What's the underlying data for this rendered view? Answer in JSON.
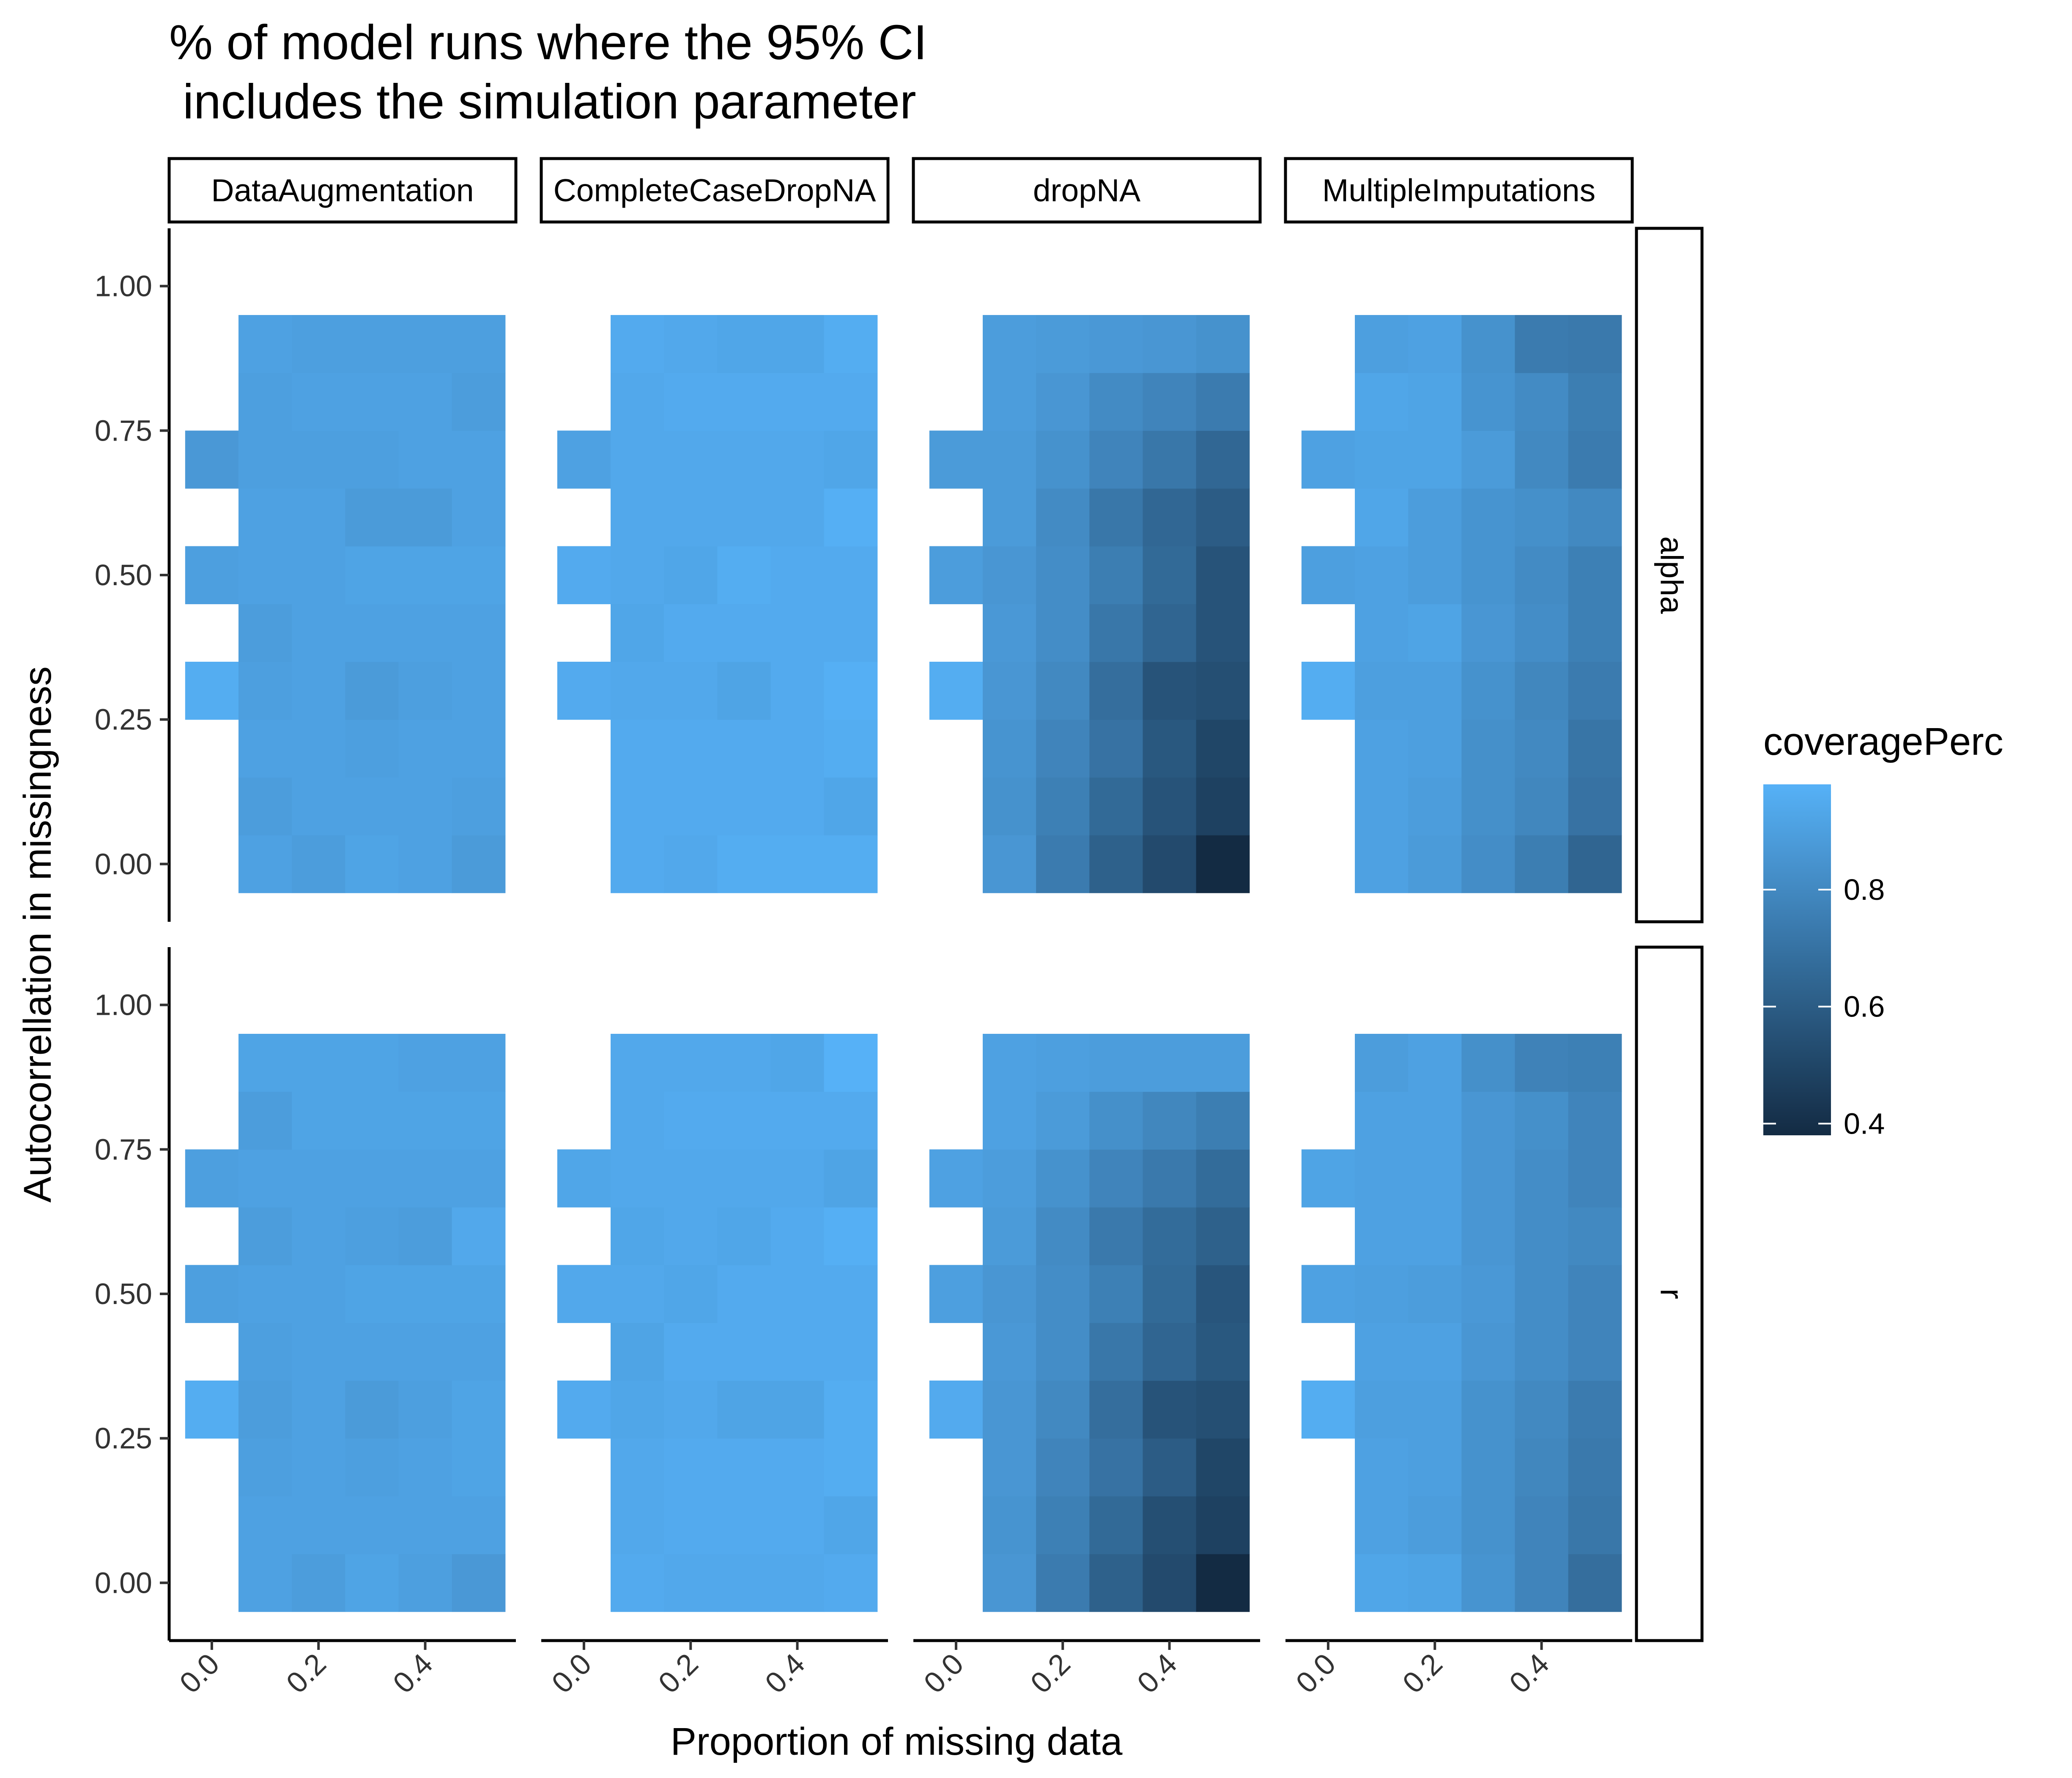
{
  "chart_data": {
    "type": "heatmap",
    "title": "% of model runs where the 95% CI\n includes the simulation parameter",
    "xlabel": "Proportion of missing data",
    "ylabel": "Autocorrellation in missingness",
    "x_tick_labels": [
      "0.0",
      "0.2",
      "0.4"
    ],
    "y_tick_labels": [
      "0.00",
      "0.25",
      "0.50",
      "0.75",
      "1.00"
    ],
    "xlim": [
      -0.08,
      0.57
    ],
    "ylim": [
      -0.1,
      1.1
    ],
    "column_facets": [
      "DataAugmentation",
      "CompleteCaseDropNA",
      "dropNA",
      "MultipleImputations"
    ],
    "row_facets": [
      "alpha",
      "r"
    ],
    "x": [
      0.0,
      0.1,
      0.2,
      0.3,
      0.4,
      0.5
    ],
    "y": [
      0.0,
      0.1,
      0.2,
      0.3,
      0.4,
      0.5,
      0.6,
      0.7,
      0.8,
      0.9
    ],
    "cell_width": 0.1,
    "cell_height": 0.1,
    "missing_note": "Cells at x = 0.0 exist only for y = 0.3, 0.5, 0.7",
    "legend": {
      "title": "coveragePerc",
      "ticks": [
        0.4,
        0.6,
        0.8
      ],
      "min": 0.38,
      "max": 0.98,
      "color_low": "#132B43",
      "color_high": "#56B1F7",
      "placement": "right"
    },
    "cells": {
      "DataAugmentation": {
        "alpha": [
          [
            0.0,
            0.91,
            0.89,
            0.92,
            0.91,
            0.88
          ],
          [
            0.0,
            0.89,
            0.91,
            0.91,
            0.91,
            0.9
          ],
          [
            0.0,
            0.91,
            0.91,
            0.9,
            0.91,
            0.91
          ],
          [
            0.96,
            0.9,
            0.91,
            0.88,
            0.9,
            0.91
          ],
          [
            0.0,
            0.89,
            0.91,
            0.91,
            0.91,
            0.91
          ],
          [
            0.9,
            0.91,
            0.91,
            0.92,
            0.92,
            0.92
          ],
          [
            0.0,
            0.91,
            0.91,
            0.88,
            0.88,
            0.91
          ],
          [
            0.87,
            0.9,
            0.9,
            0.9,
            0.91,
            0.91
          ],
          [
            0.0,
            0.9,
            0.91,
            0.91,
            0.91,
            0.89
          ],
          [
            0.0,
            0.91,
            0.9,
            0.9,
            0.9,
            0.9
          ]
        ],
        "r": [
          [
            0.0,
            0.91,
            0.89,
            0.92,
            0.9,
            0.87
          ],
          [
            0.0,
            0.91,
            0.91,
            0.91,
            0.91,
            0.91
          ],
          [
            0.0,
            0.9,
            0.91,
            0.9,
            0.91,
            0.92
          ],
          [
            0.96,
            0.89,
            0.91,
            0.88,
            0.9,
            0.92
          ],
          [
            0.0,
            0.9,
            0.91,
            0.91,
            0.91,
            0.91
          ],
          [
            0.9,
            0.91,
            0.91,
            0.92,
            0.92,
            0.92
          ],
          [
            0.0,
            0.89,
            0.91,
            0.9,
            0.89,
            0.94
          ],
          [
            0.9,
            0.91,
            0.91,
            0.91,
            0.91,
            0.91
          ],
          [
            0.0,
            0.89,
            0.92,
            0.92,
            0.92,
            0.92
          ],
          [
            0.0,
            0.92,
            0.92,
            0.92,
            0.91,
            0.91
          ]
        ]
      },
      "CompleteCaseDropNA": {
        "alpha": [
          [
            0.0,
            0.95,
            0.94,
            0.96,
            0.96,
            0.96
          ],
          [
            0.0,
            0.95,
            0.95,
            0.95,
            0.95,
            0.93
          ],
          [
            0.0,
            0.95,
            0.95,
            0.95,
            0.95,
            0.96
          ],
          [
            0.95,
            0.94,
            0.94,
            0.92,
            0.95,
            0.97
          ],
          [
            0.0,
            0.93,
            0.95,
            0.95,
            0.95,
            0.95
          ],
          [
            0.95,
            0.94,
            0.93,
            0.96,
            0.95,
            0.95
          ],
          [
            0.0,
            0.94,
            0.94,
            0.94,
            0.94,
            0.97
          ],
          [
            0.91,
            0.94,
            0.94,
            0.94,
            0.94,
            0.93
          ],
          [
            0.0,
            0.94,
            0.95,
            0.95,
            0.95,
            0.95
          ],
          [
            0.0,
            0.95,
            0.94,
            0.93,
            0.93,
            0.96
          ]
        ],
        "r": [
          [
            0.0,
            0.95,
            0.94,
            0.94,
            0.94,
            0.95
          ],
          [
            0.0,
            0.94,
            0.95,
            0.95,
            0.95,
            0.93
          ],
          [
            0.0,
            0.94,
            0.95,
            0.95,
            0.95,
            0.96
          ],
          [
            0.95,
            0.93,
            0.94,
            0.92,
            0.92,
            0.96
          ],
          [
            0.0,
            0.92,
            0.95,
            0.95,
            0.95,
            0.95
          ],
          [
            0.94,
            0.94,
            0.93,
            0.95,
            0.95,
            0.95
          ],
          [
            0.0,
            0.93,
            0.94,
            0.93,
            0.95,
            0.97
          ],
          [
            0.93,
            0.94,
            0.94,
            0.94,
            0.94,
            0.92
          ],
          [
            0.0,
            0.94,
            0.95,
            0.95,
            0.95,
            0.95
          ],
          [
            0.0,
            0.94,
            0.94,
            0.94,
            0.93,
            0.98
          ]
        ]
      },
      "dropNA": {
        "alpha": [
          [
            0.0,
            0.86,
            0.74,
            0.62,
            0.52,
            0.38
          ],
          [
            0.0,
            0.84,
            0.76,
            0.66,
            0.56,
            0.48
          ],
          [
            0.0,
            0.85,
            0.78,
            0.7,
            0.58,
            0.5
          ],
          [
            0.96,
            0.86,
            0.8,
            0.68,
            0.56,
            0.54
          ],
          [
            0.0,
            0.87,
            0.82,
            0.72,
            0.64,
            0.56
          ],
          [
            0.89,
            0.86,
            0.82,
            0.75,
            0.66,
            0.56
          ],
          [
            0.0,
            0.88,
            0.81,
            0.72,
            0.65,
            0.6
          ],
          [
            0.88,
            0.88,
            0.84,
            0.78,
            0.72,
            0.65
          ],
          [
            0.0,
            0.89,
            0.86,
            0.81,
            0.78,
            0.74
          ],
          [
            0.0,
            0.89,
            0.88,
            0.87,
            0.86,
            0.84
          ]
        ],
        "r": [
          [
            0.0,
            0.86,
            0.74,
            0.62,
            0.52,
            0.38
          ],
          [
            0.0,
            0.85,
            0.76,
            0.66,
            0.54,
            0.48
          ],
          [
            0.0,
            0.86,
            0.78,
            0.7,
            0.6,
            0.5
          ],
          [
            0.95,
            0.86,
            0.8,
            0.68,
            0.56,
            0.54
          ],
          [
            0.0,
            0.87,
            0.82,
            0.72,
            0.64,
            0.58
          ],
          [
            0.9,
            0.86,
            0.82,
            0.76,
            0.66,
            0.57
          ],
          [
            0.0,
            0.88,
            0.81,
            0.73,
            0.67,
            0.62
          ],
          [
            0.91,
            0.89,
            0.84,
            0.78,
            0.73,
            0.67
          ],
          [
            0.0,
            0.91,
            0.88,
            0.83,
            0.79,
            0.75
          ],
          [
            0.0,
            0.91,
            0.9,
            0.89,
            0.89,
            0.89
          ]
        ]
      },
      "MultipleImputations": {
        "alpha": [
          [
            0.0,
            0.91,
            0.88,
            0.82,
            0.75,
            0.64
          ],
          [
            0.0,
            0.91,
            0.89,
            0.83,
            0.79,
            0.7
          ],
          [
            0.0,
            0.91,
            0.9,
            0.83,
            0.8,
            0.71
          ],
          [
            0.96,
            0.9,
            0.9,
            0.84,
            0.79,
            0.74
          ],
          [
            0.0,
            0.91,
            0.92,
            0.86,
            0.82,
            0.76
          ],
          [
            0.9,
            0.91,
            0.89,
            0.85,
            0.81,
            0.76
          ],
          [
            0.0,
            0.93,
            0.89,
            0.85,
            0.83,
            0.8
          ],
          [
            0.91,
            0.92,
            0.92,
            0.88,
            0.8,
            0.74
          ],
          [
            0.0,
            0.93,
            0.92,
            0.85,
            0.81,
            0.75
          ],
          [
            0.0,
            0.9,
            0.91,
            0.84,
            0.74,
            0.73
          ]
        ],
        "r": [
          [
            0.0,
            0.93,
            0.92,
            0.85,
            0.78,
            0.68
          ],
          [
            0.0,
            0.91,
            0.89,
            0.84,
            0.78,
            0.72
          ],
          [
            0.0,
            0.91,
            0.9,
            0.84,
            0.79,
            0.73
          ],
          [
            0.96,
            0.9,
            0.9,
            0.84,
            0.8,
            0.74
          ],
          [
            0.0,
            0.91,
            0.91,
            0.86,
            0.82,
            0.78
          ],
          [
            0.91,
            0.9,
            0.89,
            0.87,
            0.82,
            0.78
          ],
          [
            0.0,
            0.91,
            0.91,
            0.86,
            0.82,
            0.8
          ],
          [
            0.92,
            0.91,
            0.91,
            0.86,
            0.82,
            0.78
          ],
          [
            0.0,
            0.91,
            0.91,
            0.86,
            0.83,
            0.78
          ],
          [
            0.0,
            0.89,
            0.91,
            0.83,
            0.77,
            0.76
          ]
        ]
      }
    }
  }
}
